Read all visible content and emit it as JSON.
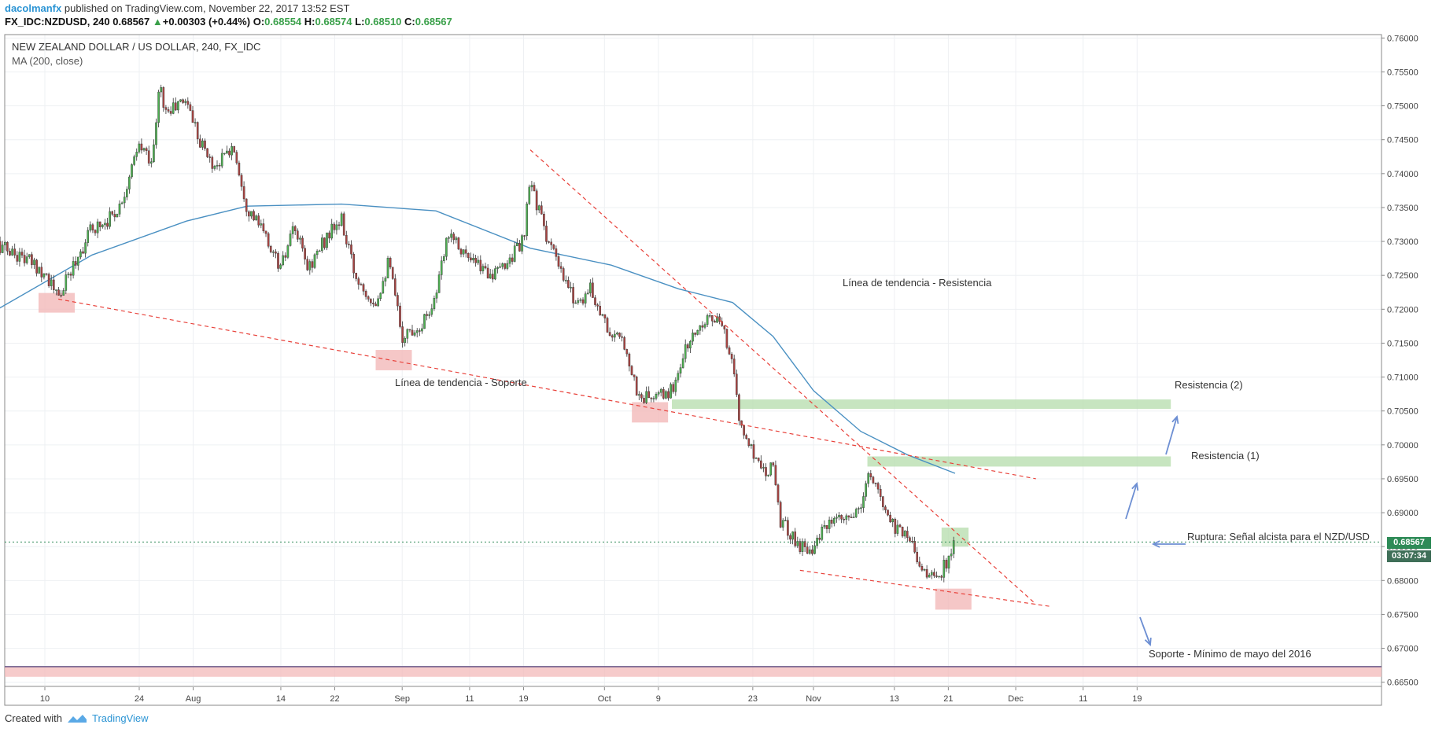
{
  "header": {
    "author": "dacolmanfx",
    "published": "published on TradingView.com, November 22, 2017 13:52 EST",
    "symbol_line": "FX_IDC:NZDUSD, 240",
    "last": "0.68567",
    "change": "+0.00303 (+0.44%)",
    "o_label": "O:",
    "o": "0.68554",
    "h_label": "H:",
    "h": "0.68574",
    "l_label": "L:",
    "l": "0.68510",
    "c_label": "C:",
    "c": "0.68567"
  },
  "footer": {
    "created_with": "Created with",
    "brand": "TradingView"
  },
  "price_tag": "0.68567",
  "time_tag": "03:07:34",
  "colors": {
    "up": "#4caf50",
    "down": "#a94442",
    "ma": "#4a90c2",
    "trend": "#e8413a",
    "support_box": "#f3b9b9",
    "resist_box": "#b9dfb0",
    "arrow": "#6d8fd3",
    "price_tag": "#2e8b57"
  },
  "chart_data": {
    "type": "candlestick",
    "title": "NEW ZEALAND DOLLAR / US DOLLAR, 240, FX_IDC",
    "indicator": "MA (200, close)",
    "y_ticks": [
      "0.76000",
      "0.75500",
      "0.75000",
      "0.74500",
      "0.74000",
      "0.73500",
      "0.73000",
      "0.72500",
      "0.72000",
      "0.71500",
      "0.71000",
      "0.70500",
      "0.70000",
      "0.69500",
      "0.69000",
      "0.68500",
      "0.68000",
      "0.67500",
      "0.67000",
      "0.66500"
    ],
    "ylim": [
      0.6645,
      0.7605
    ],
    "x_ticks": [
      "10",
      "24",
      "Aug",
      "14",
      "22",
      "Sep",
      "11",
      "19",
      "Oct",
      "9",
      "23",
      "Nov",
      "13",
      "21",
      "Dec",
      "11",
      "19"
    ],
    "price_path": [
      [
        "2017-07-03",
        0.7295
      ],
      [
        "2017-07-07",
        0.7275
      ],
      [
        "2017-07-10",
        0.7255
      ],
      [
        "2017-07-12",
        0.7215
      ],
      [
        "2017-07-14",
        0.726
      ],
      [
        "2017-07-17",
        0.732
      ],
      [
        "2017-07-19",
        0.733
      ],
      [
        "2017-07-21",
        0.735
      ],
      [
        "2017-07-24",
        0.744
      ],
      [
        "2017-07-26",
        0.742
      ],
      [
        "2017-07-27",
        0.753
      ],
      [
        "2017-07-28",
        0.749
      ],
      [
        "2017-07-31",
        0.751
      ],
      [
        "2017-08-02",
        0.745
      ],
      [
        "2017-08-04",
        0.741
      ],
      [
        "2017-08-07",
        0.744
      ],
      [
        "2017-08-09",
        0.735
      ],
      [
        "2017-08-11",
        0.732
      ],
      [
        "2017-08-14",
        0.726
      ],
      [
        "2017-08-16",
        0.732
      ],
      [
        "2017-08-18",
        0.726
      ],
      [
        "2017-08-21",
        0.731
      ],
      [
        "2017-08-23",
        0.733
      ],
      [
        "2017-08-25",
        0.725
      ],
      [
        "2017-08-28",
        0.721
      ],
      [
        "2017-08-30",
        0.727
      ],
      [
        "2017-09-01",
        0.716
      ],
      [
        "2017-09-04",
        0.718
      ],
      [
        "2017-09-06",
        0.722
      ],
      [
        "2017-09-08",
        0.732
      ],
      [
        "2017-09-11",
        0.727
      ],
      [
        "2017-09-13",
        0.726
      ],
      [
        "2017-09-15",
        0.725
      ],
      [
        "2017-09-18",
        0.729
      ],
      [
        "2017-09-19",
        0.73
      ],
      [
        "2017-09-20",
        0.739
      ],
      [
        "2017-09-22",
        0.732
      ],
      [
        "2017-09-25",
        0.724
      ],
      [
        "2017-09-27",
        0.721
      ],
      [
        "2017-09-29",
        0.723
      ],
      [
        "2017-10-02",
        0.716
      ],
      [
        "2017-10-04",
        0.715
      ],
      [
        "2017-10-06",
        0.707
      ],
      [
        "2017-10-09",
        0.707
      ],
      [
        "2017-10-11",
        0.708
      ],
      [
        "2017-10-13",
        0.714
      ],
      [
        "2017-10-16",
        0.719
      ],
      [
        "2017-10-18",
        0.718
      ],
      [
        "2017-10-20",
        0.713
      ],
      [
        "2017-10-21",
        0.703
      ],
      [
        "2017-10-23",
        0.699
      ],
      [
        "2017-10-25",
        0.696
      ],
      [
        "2017-10-26",
        0.698
      ],
      [
        "2017-10-27",
        0.689
      ],
      [
        "2017-10-30",
        0.685
      ],
      [
        "2017-11-01",
        0.685
      ],
      [
        "2017-11-03",
        0.688
      ],
      [
        "2017-11-06",
        0.689
      ],
      [
        "2017-11-08",
        0.69
      ],
      [
        "2017-11-09",
        0.696
      ],
      [
        "2017-11-10",
        0.694
      ],
      [
        "2017-11-13",
        0.688
      ],
      [
        "2017-11-15",
        0.687
      ],
      [
        "2017-11-17",
        0.682
      ],
      [
        "2017-11-19",
        0.68
      ],
      [
        "2017-11-21",
        0.683
      ],
      [
        "2017-11-22",
        0.6857
      ]
    ],
    "ma_200": [
      [
        "2017-07-03",
        0.72
      ],
      [
        "2017-07-17",
        0.728
      ],
      [
        "2017-07-31",
        0.733
      ],
      [
        "2017-08-09",
        0.7352
      ],
      [
        "2017-08-23",
        0.7355
      ],
      [
        "2017-09-06",
        0.7345
      ],
      [
        "2017-09-20",
        0.729
      ],
      [
        "2017-10-02",
        0.7265
      ],
      [
        "2017-10-12",
        0.723
      ],
      [
        "2017-10-20",
        0.721
      ],
      [
        "2017-10-26",
        0.716
      ],
      [
        "2017-11-01",
        0.708
      ],
      [
        "2017-11-08",
        0.702
      ],
      [
        "2017-11-15",
        0.6985
      ],
      [
        "2017-11-22",
        0.6958
      ]
    ],
    "annotations": {
      "support_line_label": "Línea de tendencia - Soporte",
      "resistance_line_label": "Línea de tendencia - Resistencia",
      "res2": "Resistencia (2)",
      "res1": "Resistencia (1)",
      "breakout": "Ruptura: Señal alcista para el NZD/USD",
      "support_min": "Soporte - Mínimo de mayo del 2016"
    },
    "lines": {
      "support_trend": [
        [
          "2017-07-12",
          0.7215
        ],
        [
          "2017-12-04",
          0.695
        ]
      ],
      "resistance_trend": [
        [
          "2017-09-20",
          0.7435
        ],
        [
          "2017-12-04",
          0.6765
        ]
      ],
      "lower_trend": [
        [
          "2017-10-30",
          0.6815
        ],
        [
          "2017-12-06",
          0.6762
        ]
      ]
    },
    "zones": {
      "resistance_2": [
        0.7053,
        0.7067
      ],
      "resistance_1": [
        0.6968,
        0.6983
      ],
      "may_2016_low": [
        0.6658,
        0.6673
      ]
    }
  }
}
